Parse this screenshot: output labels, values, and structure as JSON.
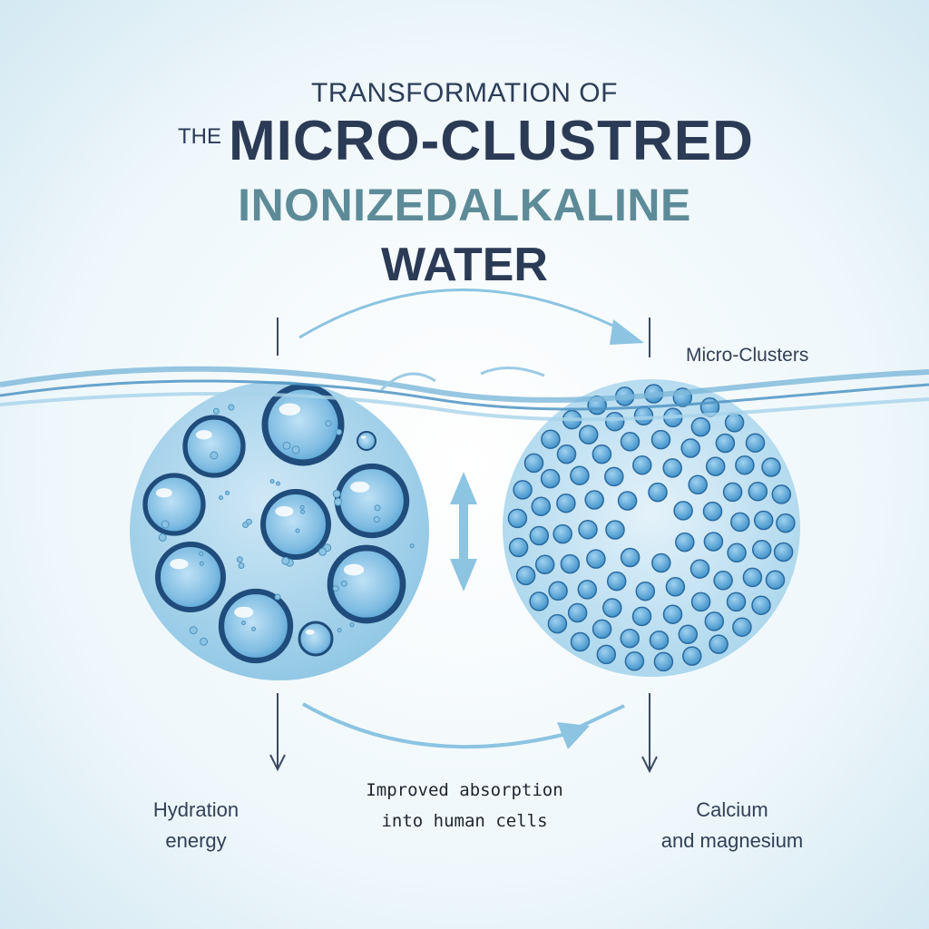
{
  "title": {
    "line1": "TRANSFORMATION OF",
    "line2_prefix": "THE",
    "line2": "MICRO-CLUSTRED",
    "line3": "INONIZEDALKALINE",
    "line4": "WATER"
  },
  "labels": {
    "micro_clusters": "Micro-Clusters",
    "hydration_line1": "Hydration",
    "hydration_line2": "energy",
    "absorption_line1": "Improved absorption",
    "absorption_line2": "into human cells",
    "calcium_line1": "Calcium",
    "calcium_line2": "and magnesium"
  },
  "colors": {
    "background": "#e6f3f9",
    "water_blue": "#8fc6e0",
    "bubble_blue": "#5aa6d4",
    "dark_outline": "#1f4c7a",
    "title_dark": "#2b3b56",
    "title_teal": "#5d8b98"
  },
  "icons": [
    "large-cluster-circle-icon",
    "micro-cluster-circle-icon",
    "vertical-double-arrow-icon",
    "curved-arrow-icon",
    "water-wave-icon"
  ]
}
